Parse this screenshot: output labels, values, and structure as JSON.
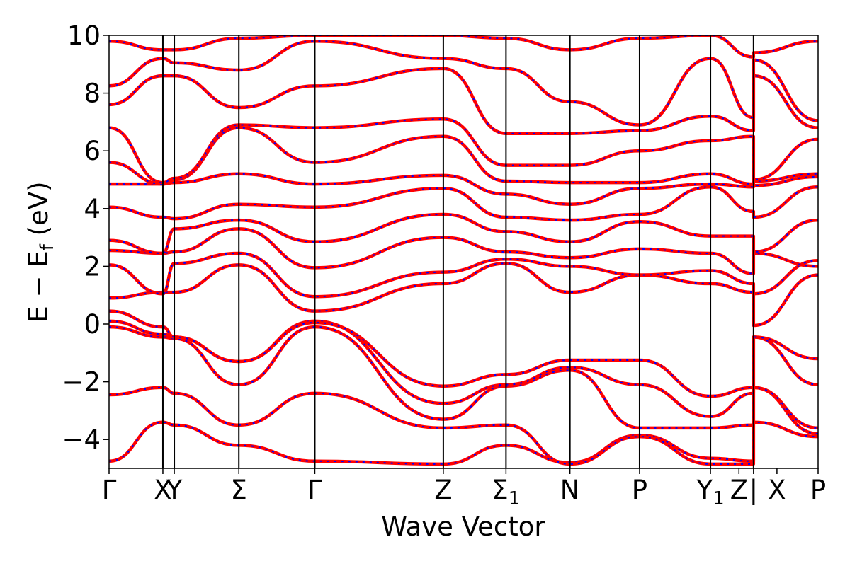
{
  "chart_data": {
    "type": "line",
    "title": "",
    "xlabel": "Wave Vector",
    "ylabel": {
      "main": "E − E",
      "sub": "f",
      "unit": " (eV)"
    },
    "ylim": [
      -5,
      10
    ],
    "yticks": [
      {
        "value": -4,
        "label": "−4"
      },
      {
        "value": -2,
        "label": "−2"
      },
      {
        "value": 0,
        "label": "0"
      },
      {
        "value": 2,
        "label": "2"
      },
      {
        "value": 4,
        "label": "4"
      },
      {
        "value": 6,
        "label": "6"
      },
      {
        "value": 8,
        "label": "8"
      },
      {
        "value": 10,
        "label": "10"
      }
    ],
    "xlim": [
      0,
      11.2
    ],
    "kpoints": [
      {
        "x": 0,
        "label": "Γ",
        "sub": ""
      },
      {
        "x": 0.85,
        "label": "X",
        "sub": ""
      },
      {
        "x": 1.03,
        "label": "Y",
        "sub": ""
      },
      {
        "x": 2.05,
        "label": "Σ",
        "sub": ""
      },
      {
        "x": 3.25,
        "label": "Γ",
        "sub": ""
      },
      {
        "x": 5.28,
        "label": "Z",
        "sub": ""
      },
      {
        "x": 6.27,
        "label": "Σ",
        "sub": "1"
      },
      {
        "x": 7.28,
        "label": "N",
        "sub": ""
      },
      {
        "x": 8.38,
        "label": "P",
        "sub": ""
      },
      {
        "x": 9.5,
        "label": "Y",
        "sub": "1"
      },
      {
        "x": 9.95,
        "label": "Z",
        "sub": ""
      },
      {
        "x": 10.18,
        "label": "|",
        "sub": ""
      },
      {
        "x": 10.55,
        "label": "X",
        "sub": ""
      },
      {
        "x": 11.2,
        "label": "P",
        "sub": ""
      }
    ],
    "vlines": [
      0.85,
      1.03,
      2.05,
      3.25,
      5.28,
      6.27,
      7.28,
      8.38,
      9.5,
      10.18
    ],
    "grid": false,
    "legend": "none",
    "colors": {
      "series_a": "#ff0000",
      "series_b": "#0000ff",
      "frame": "#000000"
    },
    "x": [
      0,
      0.85,
      1.03,
      2.05,
      3.25,
      5.28,
      6.27,
      7.28,
      8.38,
      9.5,
      10.18,
      10.18,
      11.2
    ],
    "bands": [
      [
        -4.75,
        -3.4,
        -3.5,
        -4.2,
        -4.75,
        -4.85,
        -4.2,
        -4.8,
        -3.85,
        -4.65,
        -4.75,
        -3.4,
        -3.9
      ],
      [
        -2.45,
        -2.2,
        -2.4,
        -3.5,
        -2.4,
        -3.6,
        -3.5,
        -4.85,
        -3.9,
        -4.85,
        -4.85,
        -2.2,
        -3.8
      ],
      [
        -0.1,
        -0.45,
        -0.5,
        -2.1,
        -0.1,
        -3.3,
        -2.15,
        -1.6,
        -3.6,
        -3.6,
        -3.5,
        -2.2,
        -3.6
      ],
      [
        0.1,
        -0.35,
        -0.45,
        -1.3,
        0.1,
        -2.75,
        -2.1,
        -1.5,
        -2.1,
        -3.2,
        -2.4,
        -0.45,
        -2.1
      ],
      [
        0.45,
        -0.1,
        -0.45,
        -1.3,
        0.05,
        -2.15,
        -1.75,
        -1.25,
        -1.25,
        -2.5,
        -2.2,
        -0.45,
        -1.2
      ],
      [
        0.9,
        1.1,
        1.1,
        2.05,
        0.45,
        1.4,
        2.1,
        1.1,
        1.7,
        1.4,
        1.1,
        -0.05,
        1.7
      ],
      [
        2.05,
        1.05,
        2.1,
        2.45,
        0.95,
        1.8,
        2.25,
        2.0,
        1.7,
        1.85,
        1.4,
        1.05,
        2.2
      ],
      [
        2.55,
        2.45,
        2.5,
        3.3,
        1.95,
        3.0,
        2.5,
        2.3,
        2.6,
        2.45,
        1.75,
        2.45,
        2.0
      ],
      [
        2.9,
        2.45,
        3.3,
        3.6,
        2.85,
        3.8,
        3.2,
        2.85,
        3.55,
        3.05,
        3.05,
        2.5,
        3.6
      ],
      [
        4.05,
        3.7,
        3.65,
        4.15,
        4.05,
        4.7,
        3.7,
        3.6,
        3.8,
        4.75,
        3.9,
        3.7,
        4.75
      ],
      [
        4.85,
        4.85,
        4.9,
        5.2,
        4.85,
        5.15,
        4.5,
        4.15,
        4.7,
        4.85,
        4.75,
        4.8,
        5.1
      ],
      [
        5.6,
        4.85,
        5.0,
        6.8,
        5.6,
        6.5,
        4.95,
        4.9,
        4.9,
        5.2,
        4.85,
        4.95,
        5.2
      ],
      [
        6.8,
        4.9,
        5.05,
        6.9,
        6.8,
        7.1,
        5.5,
        5.5,
        6.0,
        6.35,
        6.5,
        5.0,
        6.4
      ],
      [
        7.6,
        8.6,
        8.6,
        7.5,
        8.25,
        8.85,
        6.6,
        6.6,
        6.7,
        7.2,
        6.7,
        8.6,
        6.8
      ],
      [
        8.25,
        9.2,
        9.05,
        8.8,
        9.8,
        9.2,
        8.85,
        7.7,
        6.9,
        9.2,
        7.15,
        9.15,
        7.05
      ],
      [
        9.8,
        9.5,
        9.5,
        9.9,
        10.0,
        10.0,
        9.9,
        9.5,
        9.9,
        10.0,
        9.25,
        9.4,
        9.8
      ]
    ]
  }
}
